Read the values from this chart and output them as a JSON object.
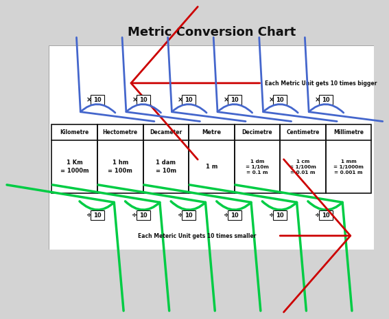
{
  "title": "Metric Conversion Chart",
  "title_fontsize": 13,
  "bg_color": "#d3d3d3",
  "content_bg": "#ffffff",
  "units": [
    "Kilometre",
    "Hectometre",
    "Decameter",
    "Metre",
    "Decimetre",
    "Centimetre",
    "Millimetre"
  ],
  "values": [
    "1 Km\n= 1000m",
    "1 hm\n= 100m",
    "1 dam\n= 10m",
    "1 m",
    "1 dm\n= 1/10m\n= 0.1 m",
    "1 cm\n= 1/100m\n= 0.01 m",
    "1 mm\n= 1/1000m\n= 0.001 m"
  ],
  "top_arrow_label": "Each Metric Unit gets 10 times bigger",
  "bottom_arrow_label": "Each Meteric Unit gets 10 times smaller",
  "multiply_symbol": "×",
  "divide_symbol": "÷",
  "arrow_color_red": "#cc0000",
  "arrow_color_blue": "#4466cc",
  "arrow_color_green": "#00cc44",
  "box_border_color": "#111111",
  "text_color": "#111111"
}
